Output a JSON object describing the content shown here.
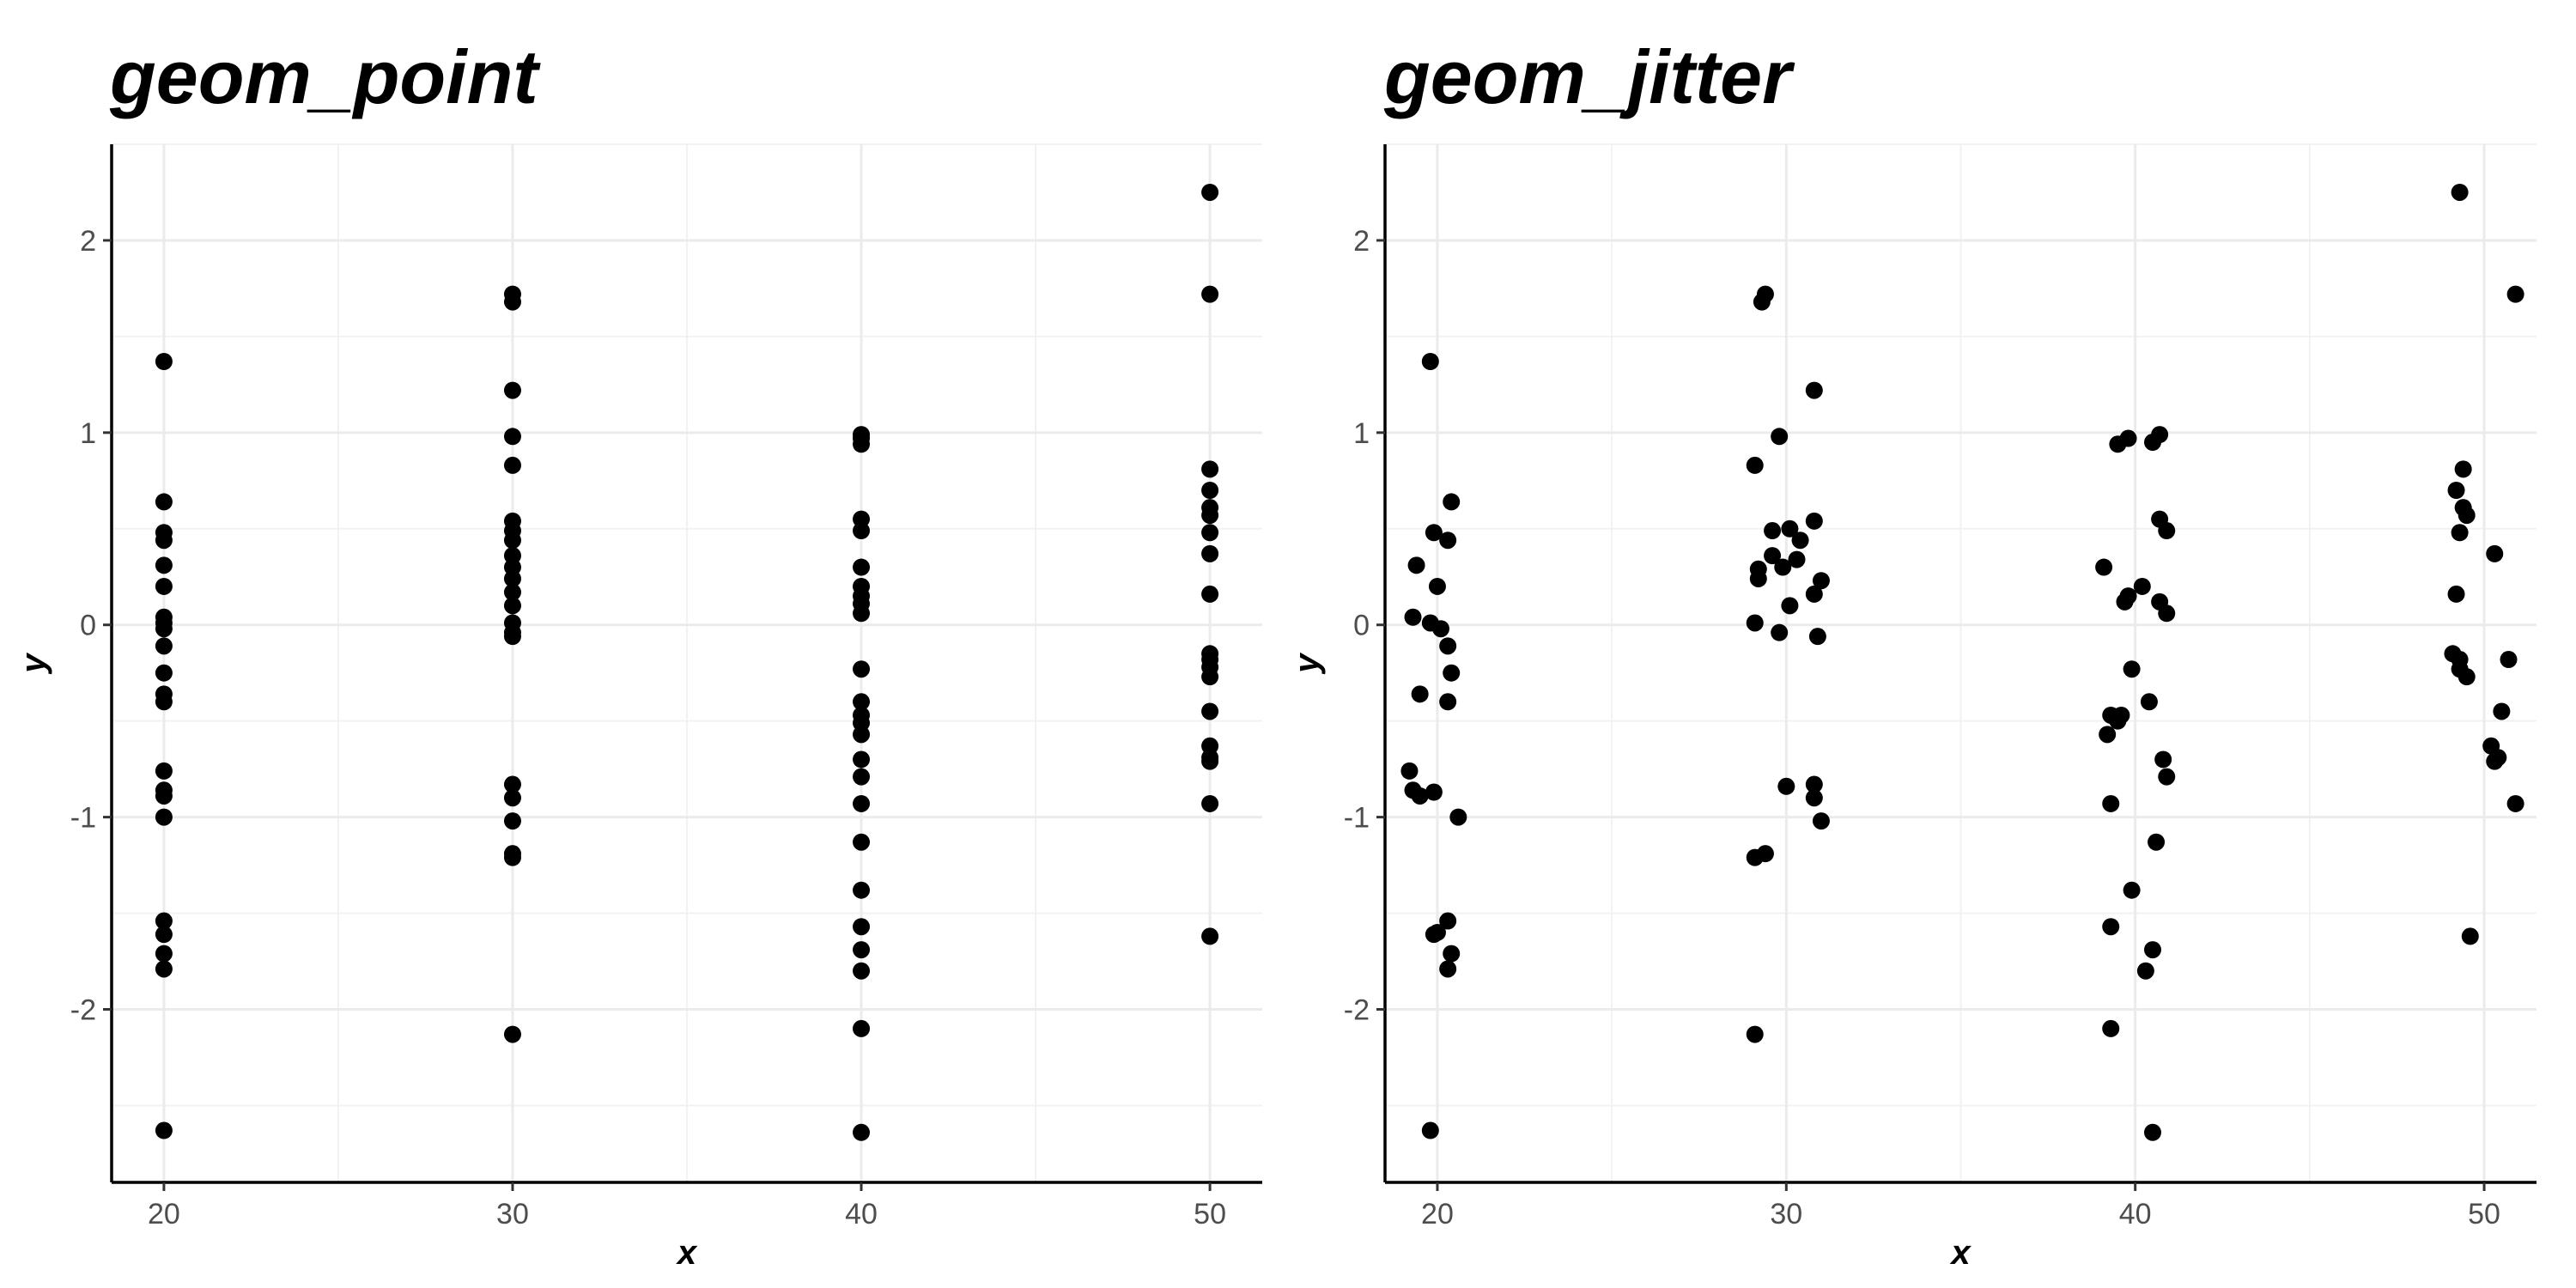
{
  "chart_data": [
    {
      "type": "scatter",
      "title": "geom_point",
      "xlabel": "x",
      "ylabel": "y",
      "xlim": [
        18.5,
        51.5
      ],
      "ylim": [
        -2.9,
        2.5
      ],
      "x_ticks": [
        20,
        30,
        40,
        50
      ],
      "y_ticks": [
        -2,
        -1,
        0,
        1,
        2
      ],
      "x_tick_labels": [
        "20",
        "30",
        "40",
        "50"
      ],
      "y_tick_labels": [
        "-2",
        "-1",
        "0",
        "1",
        "2"
      ],
      "grid": true,
      "point_color": "#000000",
      "points": [
        {
          "x": 20,
          "y": 1.37
        },
        {
          "x": 20,
          "y": 0.64
        },
        {
          "x": 20,
          "y": 0.48
        },
        {
          "x": 20,
          "y": 0.44
        },
        {
          "x": 20,
          "y": 0.31
        },
        {
          "x": 20,
          "y": 0.2
        },
        {
          "x": 20,
          "y": 0.04
        },
        {
          "x": 20,
          "y": 0.01
        },
        {
          "x": 20,
          "y": -0.02
        },
        {
          "x": 20,
          "y": -0.11
        },
        {
          "x": 20,
          "y": -0.25
        },
        {
          "x": 20,
          "y": -0.36
        },
        {
          "x": 20,
          "y": -0.4
        },
        {
          "x": 20,
          "y": -0.76
        },
        {
          "x": 20,
          "y": -0.86
        },
        {
          "x": 20,
          "y": -0.89
        },
        {
          "x": 20,
          "y": -1.0
        },
        {
          "x": 20,
          "y": -1.54
        },
        {
          "x": 20,
          "y": -1.61
        },
        {
          "x": 20,
          "y": -1.71
        },
        {
          "x": 20,
          "y": -1.79
        },
        {
          "x": 20,
          "y": -2.63
        },
        {
          "x": 30,
          "y": 1.72
        },
        {
          "x": 30,
          "y": 1.68
        },
        {
          "x": 30,
          "y": 1.22
        },
        {
          "x": 30,
          "y": 0.98
        },
        {
          "x": 30,
          "y": 0.83
        },
        {
          "x": 30,
          "y": 0.54
        },
        {
          "x": 30,
          "y": 0.49
        },
        {
          "x": 30,
          "y": 0.44
        },
        {
          "x": 30,
          "y": 0.36
        },
        {
          "x": 30,
          "y": 0.3
        },
        {
          "x": 30,
          "y": 0.24
        },
        {
          "x": 30,
          "y": 0.17
        },
        {
          "x": 30,
          "y": 0.1
        },
        {
          "x": 30,
          "y": 0.01
        },
        {
          "x": 30,
          "y": -0.04
        },
        {
          "x": 30,
          "y": -0.06
        },
        {
          "x": 30,
          "y": -0.83
        },
        {
          "x": 30,
          "y": -0.9
        },
        {
          "x": 30,
          "y": -1.02
        },
        {
          "x": 30,
          "y": -1.19
        },
        {
          "x": 30,
          "y": -1.21
        },
        {
          "x": 30,
          "y": -2.13
        },
        {
          "x": 40,
          "y": 0.99
        },
        {
          "x": 40,
          "y": 0.97
        },
        {
          "x": 40,
          "y": 0.94
        },
        {
          "x": 40,
          "y": 0.55
        },
        {
          "x": 40,
          "y": 0.49
        },
        {
          "x": 40,
          "y": 0.3
        },
        {
          "x": 40,
          "y": 0.2
        },
        {
          "x": 40,
          "y": 0.15
        },
        {
          "x": 40,
          "y": 0.11
        },
        {
          "x": 40,
          "y": 0.06
        },
        {
          "x": 40,
          "y": -0.23
        },
        {
          "x": 40,
          "y": -0.4
        },
        {
          "x": 40,
          "y": -0.47
        },
        {
          "x": 40,
          "y": -0.51
        },
        {
          "x": 40,
          "y": -0.57
        },
        {
          "x": 40,
          "y": -0.7
        },
        {
          "x": 40,
          "y": -0.79
        },
        {
          "x": 40,
          "y": -0.93
        },
        {
          "x": 40,
          "y": -1.13
        },
        {
          "x": 40,
          "y": -1.38
        },
        {
          "x": 40,
          "y": -1.57
        },
        {
          "x": 40,
          "y": -1.69
        },
        {
          "x": 40,
          "y": -1.8
        },
        {
          "x": 40,
          "y": -2.1
        },
        {
          "x": 40,
          "y": -2.64
        },
        {
          "x": 50,
          "y": 2.25
        },
        {
          "x": 50,
          "y": 1.72
        },
        {
          "x": 50,
          "y": 0.81
        },
        {
          "x": 50,
          "y": 0.7
        },
        {
          "x": 50,
          "y": 0.61
        },
        {
          "x": 50,
          "y": 0.57
        },
        {
          "x": 50,
          "y": 0.48
        },
        {
          "x": 50,
          "y": 0.37
        },
        {
          "x": 50,
          "y": 0.16
        },
        {
          "x": 50,
          "y": -0.15
        },
        {
          "x": 50,
          "y": -0.18
        },
        {
          "x": 50,
          "y": -0.22
        },
        {
          "x": 50,
          "y": -0.27
        },
        {
          "x": 50,
          "y": -0.45
        },
        {
          "x": 50,
          "y": -0.63
        },
        {
          "x": 50,
          "y": -0.69
        },
        {
          "x": 50,
          "y": -0.71
        },
        {
          "x": 50,
          "y": -0.93
        },
        {
          "x": 50,
          "y": -1.62
        }
      ]
    },
    {
      "type": "scatter",
      "title": "geom_jitter",
      "xlabel": "x",
      "ylabel": "y",
      "xlim": [
        18.5,
        51.5
      ],
      "ylim": [
        -2.9,
        2.5
      ],
      "x_ticks": [
        20,
        30,
        40,
        50
      ],
      "y_ticks": [
        -2,
        -1,
        0,
        1,
        2
      ],
      "x_tick_labels": [
        "20",
        "30",
        "40",
        "50"
      ],
      "y_tick_labels": [
        "-2",
        "-1",
        "0",
        "1",
        "2"
      ],
      "grid": true,
      "point_color": "#000000",
      "points": [
        {
          "x": 19.8,
          "y": 1.37
        },
        {
          "x": 20.4,
          "y": 0.64
        },
        {
          "x": 19.9,
          "y": 0.48
        },
        {
          "x": 20.3,
          "y": 0.44
        },
        {
          "x": 19.4,
          "y": 0.31
        },
        {
          "x": 20.0,
          "y": 0.2
        },
        {
          "x": 19.3,
          "y": 0.04
        },
        {
          "x": 19.8,
          "y": 0.01
        },
        {
          "x": 20.1,
          "y": -0.02
        },
        {
          "x": 20.3,
          "y": -0.11
        },
        {
          "x": 20.4,
          "y": -0.25
        },
        {
          "x": 19.5,
          "y": -0.36
        },
        {
          "x": 20.3,
          "y": -0.4
        },
        {
          "x": 19.2,
          "y": -0.76
        },
        {
          "x": 19.3,
          "y": -0.86
        },
        {
          "x": 19.9,
          "y": -0.87
        },
        {
          "x": 19.5,
          "y": -0.89
        },
        {
          "x": 20.6,
          "y": -1.0
        },
        {
          "x": 20.3,
          "y": -1.54
        },
        {
          "x": 20.0,
          "y": -1.6
        },
        {
          "x": 19.9,
          "y": -1.61
        },
        {
          "x": 20.4,
          "y": -1.71
        },
        {
          "x": 20.3,
          "y": -1.79
        },
        {
          "x": 19.8,
          "y": -2.63
        },
        {
          "x": 29.4,
          "y": 1.72
        },
        {
          "x": 29.3,
          "y": 1.68
        },
        {
          "x": 30.8,
          "y": 1.22
        },
        {
          "x": 29.8,
          "y": 0.98
        },
        {
          "x": 29.1,
          "y": 0.83
        },
        {
          "x": 30.8,
          "y": 0.54
        },
        {
          "x": 30.1,
          "y": 0.5
        },
        {
          "x": 29.6,
          "y": 0.49
        },
        {
          "x": 30.4,
          "y": 0.44
        },
        {
          "x": 29.6,
          "y": 0.36
        },
        {
          "x": 30.3,
          "y": 0.34
        },
        {
          "x": 29.9,
          "y": 0.3
        },
        {
          "x": 29.2,
          "y": 0.29
        },
        {
          "x": 29.2,
          "y": 0.24
        },
        {
          "x": 31.0,
          "y": 0.23
        },
        {
          "x": 30.8,
          "y": 0.16
        },
        {
          "x": 30.1,
          "y": 0.1
        },
        {
          "x": 29.1,
          "y": 0.01
        },
        {
          "x": 29.8,
          "y": -0.04
        },
        {
          "x": 30.9,
          "y": -0.06
        },
        {
          "x": 30.0,
          "y": -0.84
        },
        {
          "x": 30.8,
          "y": -0.83
        },
        {
          "x": 30.8,
          "y": -0.9
        },
        {
          "x": 31.0,
          "y": -1.02
        },
        {
          "x": 29.4,
          "y": -1.19
        },
        {
          "x": 29.1,
          "y": -1.21
        },
        {
          "x": 29.1,
          "y": -2.13
        },
        {
          "x": 40.7,
          "y": 0.99
        },
        {
          "x": 39.8,
          "y": 0.97
        },
        {
          "x": 40.5,
          "y": 0.95
        },
        {
          "x": 39.5,
          "y": 0.94
        },
        {
          "x": 40.7,
          "y": 0.55
        },
        {
          "x": 40.9,
          "y": 0.49
        },
        {
          "x": 39.1,
          "y": 0.3
        },
        {
          "x": 40.2,
          "y": 0.2
        },
        {
          "x": 39.8,
          "y": 0.15
        },
        {
          "x": 39.7,
          "y": 0.12
        },
        {
          "x": 40.7,
          "y": 0.12
        },
        {
          "x": 40.9,
          "y": 0.06
        },
        {
          "x": 39.9,
          "y": -0.23
        },
        {
          "x": 40.4,
          "y": -0.4
        },
        {
          "x": 39.3,
          "y": -0.47
        },
        {
          "x": 39.6,
          "y": -0.47
        },
        {
          "x": 39.5,
          "y": -0.5
        },
        {
          "x": 39.2,
          "y": -0.57
        },
        {
          "x": 40.8,
          "y": -0.7
        },
        {
          "x": 40.9,
          "y": -0.79
        },
        {
          "x": 39.3,
          "y": -0.93
        },
        {
          "x": 40.6,
          "y": -1.13
        },
        {
          "x": 39.9,
          "y": -1.38
        },
        {
          "x": 39.3,
          "y": -1.57
        },
        {
          "x": 40.5,
          "y": -1.69
        },
        {
          "x": 40.3,
          "y": -1.8
        },
        {
          "x": 39.3,
          "y": -2.1
        },
        {
          "x": 40.5,
          "y": -2.64
        },
        {
          "x": 49.3,
          "y": 2.25
        },
        {
          "x": 50.9,
          "y": 1.72
        },
        {
          "x": 49.4,
          "y": 0.81
        },
        {
          "x": 49.2,
          "y": 0.7
        },
        {
          "x": 49.4,
          "y": 0.61
        },
        {
          "x": 49.5,
          "y": 0.57
        },
        {
          "x": 49.3,
          "y": 0.48
        },
        {
          "x": 50.3,
          "y": 0.37
        },
        {
          "x": 49.2,
          "y": 0.16
        },
        {
          "x": 49.1,
          "y": -0.15
        },
        {
          "x": 50.7,
          "y": -0.18
        },
        {
          "x": 49.3,
          "y": -0.18
        },
        {
          "x": 49.3,
          "y": -0.23
        },
        {
          "x": 49.5,
          "y": -0.27
        },
        {
          "x": 50.5,
          "y": -0.45
        },
        {
          "x": 50.2,
          "y": -0.63
        },
        {
          "x": 50.4,
          "y": -0.69
        },
        {
          "x": 50.3,
          "y": -0.71
        },
        {
          "x": 50.9,
          "y": -0.93
        },
        {
          "x": 49.6,
          "y": -1.62
        }
      ]
    }
  ]
}
